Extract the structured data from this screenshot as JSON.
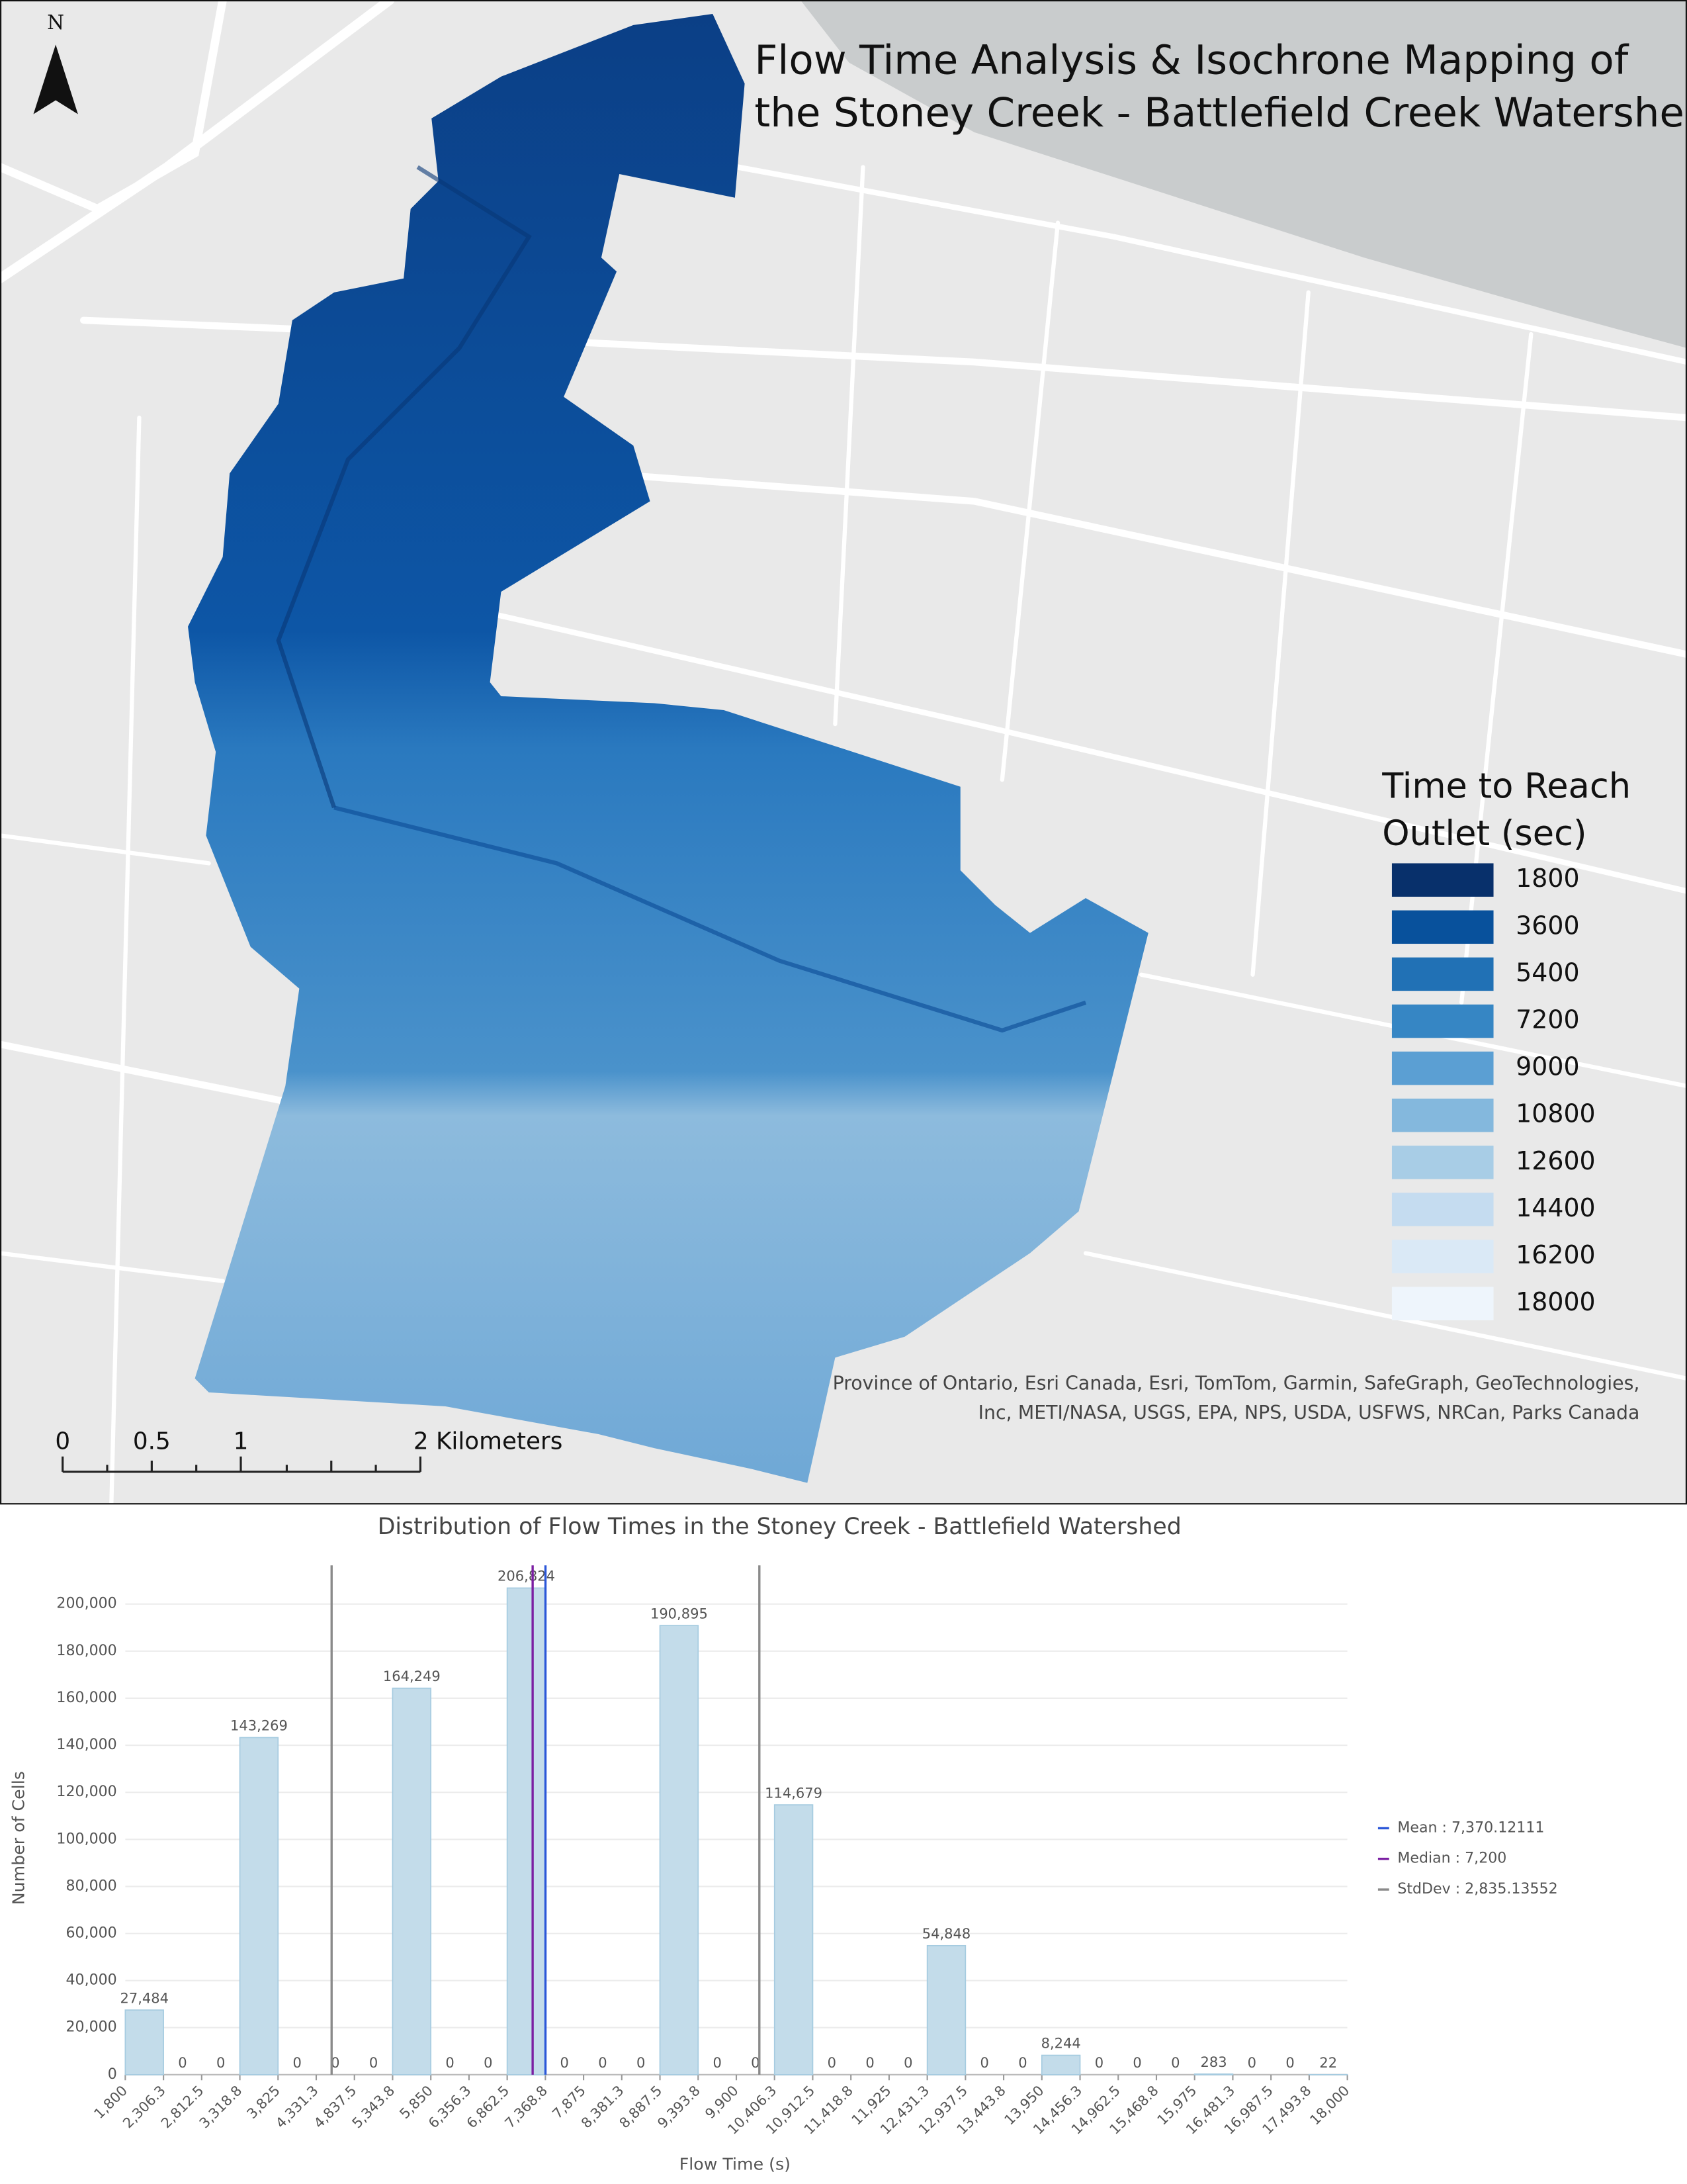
{
  "map": {
    "title_lines": [
      "Flow Time Analysis & Isochrone Mapping of",
      "the Stoney Creek - Battlefield Creek Watershed"
    ],
    "north": "N",
    "legend": {
      "title_lines": [
        "Time to Reach",
        "Outlet (sec)"
      ],
      "items": [
        {
          "label": "1800",
          "color": "#08306b"
        },
        {
          "label": "3600",
          "color": "#08519c"
        },
        {
          "label": "5400",
          "color": "#2171b5"
        },
        {
          "label": "7200",
          "color": "#3686c4"
        },
        {
          "label": "9000",
          "color": "#5b9fd3"
        },
        {
          "label": "10800",
          "color": "#84b8dd"
        },
        {
          "label": "12600",
          "color": "#a8cde6"
        },
        {
          "label": "14400",
          "color": "#c5dcf0"
        },
        {
          "label": "16200",
          "color": "#dae9f6"
        },
        {
          "label": "18000",
          "color": "#eef5fc"
        }
      ]
    },
    "attribution": "Province of Ontario, Esri Canada, Esri, TomTom, Garmin, SafeGraph, GeoTechnologies, Inc, METI/NASA, USGS, EPA, NPS, USDA, USFWS, NRCan, Parks Canada",
    "scale_bar": [
      "0",
      "0.5",
      "1",
      "2 Kilometers"
    ]
  },
  "chart_data": {
    "type": "histogram",
    "title": "Distribution of Flow Times in the Stoney Creek - Battlefield Watershed",
    "x_label": "Flow Time (s)",
    "y_label": "Number of Cells",
    "color": "#c3dcea",
    "bins": [
      1800,
      2306.25,
      2812.5,
      3318.75,
      3825,
      4331.25,
      4837.5,
      5343.75,
      5850,
      6356.25,
      6862.5,
      7368.75,
      7875,
      8381.25,
      8887.5,
      9393.75,
      9900,
      10406.25,
      10912.5,
      11418.75,
      11925,
      12431.25,
      12937.5,
      13443.75,
      13950,
      14456.25,
      14962.5,
      15468.75,
      15975,
      16481.25,
      16987.5,
      17493.75,
      18000
    ],
    "values": [
      27484,
      0,
      0,
      143269,
      0,
      0,
      0,
      164249,
      0,
      0,
      206824,
      0,
      0,
      0,
      190895,
      0,
      0,
      114679,
      0,
      0,
      0,
      54848,
      0,
      0,
      8244,
      0,
      0,
      0,
      283,
      0,
      0,
      22
    ],
    "value_labels": [
      "27,484",
      "0",
      "0",
      "143,269",
      "0",
      "0",
      "0",
      "164,249",
      "0",
      "0",
      "206,824",
      "0",
      "0",
      "0",
      "190,895",
      "0",
      "0",
      "114,679",
      "0",
      "0",
      "0",
      "54,848",
      "0",
      "0",
      "8,244",
      "0",
      "0",
      "0",
      "283",
      "0",
      "0",
      "22"
    ],
    "xlim": [
      1800,
      18000
    ],
    "xticks": [
      {
        "value": 1800,
        "label": "1,800"
      },
      {
        "value": 2306.25,
        "label": "2,306.3"
      },
      {
        "value": 2812.5,
        "label": "2,812.5"
      },
      {
        "value": 3318.75,
        "label": "3,318.8"
      },
      {
        "value": 3825,
        "label": "3,825"
      },
      {
        "value": 4331.25,
        "label": "4,331.3"
      },
      {
        "value": 4837.5,
        "label": "4,837.5"
      },
      {
        "value": 5343.75,
        "label": "5,343.8"
      },
      {
        "value": 5850,
        "label": "5,850"
      },
      {
        "value": 6356.25,
        "label": "6,356.3"
      },
      {
        "value": 6862.5,
        "label": "6,862.5"
      },
      {
        "value": 7368.75,
        "label": "7,368.8"
      },
      {
        "value": 7875,
        "label": "7,875"
      },
      {
        "value": 8381.25,
        "label": "8,381.3"
      },
      {
        "value": 8887.5,
        "label": "8,887.5"
      },
      {
        "value": 9393.75,
        "label": "9,393.8"
      },
      {
        "value": 9900,
        "label": "9,900"
      },
      {
        "value": 10406.25,
        "label": "10,406.3"
      },
      {
        "value": 10912.5,
        "label": "10,912.5"
      },
      {
        "value": 11418.75,
        "label": "11,418.8"
      },
      {
        "value": 11925,
        "label": "11,925"
      },
      {
        "value": 12431.25,
        "label": "12,431.3"
      },
      {
        "value": 12937.5,
        "label": "12,937.5"
      },
      {
        "value": 13443.75,
        "label": "13,443.8"
      },
      {
        "value": 13950,
        "label": "13,950"
      },
      {
        "value": 14456.25,
        "label": "14,456.3"
      },
      {
        "value": 14962.5,
        "label": "14,962.5"
      },
      {
        "value": 15468.75,
        "label": "15,468.8"
      },
      {
        "value": 15975,
        "label": "15,975"
      },
      {
        "value": 16481.25,
        "label": "16,481.3"
      },
      {
        "value": 16987.5,
        "label": "16,987.5"
      },
      {
        "value": 17493.75,
        "label": "17,493.8"
      },
      {
        "value": 18000,
        "label": "18,000"
      }
    ],
    "ylim": [
      0,
      220000
    ],
    "yticks": [
      0,
      {
        "value": 20000,
        "label": "20,000"
      },
      {
        "value": 40000,
        "label": "40,000"
      },
      {
        "value": 60000,
        "label": "60,000"
      },
      {
        "value": 80000,
        "label": "80,000"
      },
      {
        "value": 100000,
        "label": "100,000"
      },
      {
        "value": 120000,
        "label": "120,000"
      },
      {
        "value": 140000,
        "label": "140,000"
      },
      {
        "value": 160000,
        "label": "160,000"
      },
      {
        "value": 180000,
        "label": "180,000"
      },
      {
        "value": 200000,
        "label": "200,000"
      }
    ],
    "grid": true,
    "legend": "right",
    "mean": {
      "value": 7370.12111,
      "label": "Mean : 7,370.12111",
      "color": "#2b57d8"
    },
    "median": {
      "value": 7200,
      "label": "Median : 7,200",
      "color": "#7b1fa2"
    },
    "stddev": {
      "value": 2835.13552,
      "label": "StdDev : 2,835.13552",
      "color": "#8a8a8a"
    }
  }
}
